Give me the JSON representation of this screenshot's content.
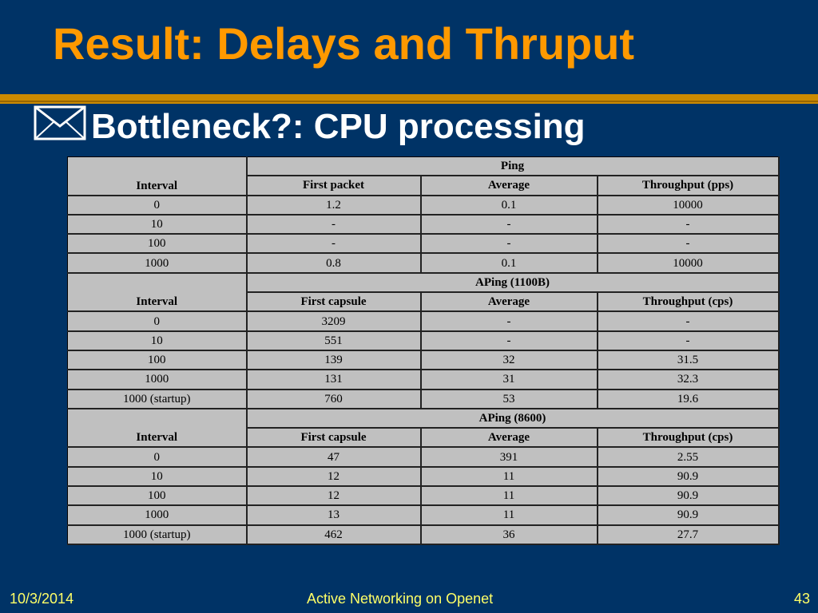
{
  "slide": {
    "title": "Result: Delays and Thruput",
    "bullet": "Bottleneck?: CPU processing",
    "bullet_icon": "envelope-icon",
    "colors": {
      "background": "#003366",
      "title": "#ff9900",
      "rule": "#cc8a00",
      "footer": "#ffff66"
    }
  },
  "tables": [
    {
      "group_label": "Ping",
      "headers": [
        "Interval",
        "First packet",
        "Average",
        "Throughput (pps)"
      ],
      "rows": [
        [
          "0",
          "1.2",
          "0.1",
          "10000"
        ],
        [
          "10",
          "-",
          "-",
          "-"
        ],
        [
          "100",
          "-",
          "-",
          "-"
        ],
        [
          "1000",
          "0.8",
          "0.1",
          "10000"
        ]
      ]
    },
    {
      "group_label": "APing (1100B)",
      "headers": [
        "Interval",
        "First capsule",
        "Average",
        "Throughput (cps)"
      ],
      "rows": [
        [
          "0",
          "3209",
          "-",
          "-"
        ],
        [
          "10",
          "551",
          "-",
          "-"
        ],
        [
          "100",
          "139",
          "32",
          "31.5"
        ],
        [
          "1000",
          "131",
          "31",
          "32.3"
        ],
        [
          "1000 (startup)",
          "760",
          "53",
          "19.6"
        ]
      ]
    },
    {
      "group_label": "APing (8600)",
      "headers": [
        "Interval",
        "First capsule",
        "Average",
        "Throughput (cps)"
      ],
      "rows": [
        [
          "0",
          "47",
          "391",
          "2.55"
        ],
        [
          "10",
          "12",
          "11",
          "90.9"
        ],
        [
          "100",
          "12",
          "11",
          "90.9"
        ],
        [
          "1000",
          "13",
          "11",
          "90.9"
        ],
        [
          "1000 (startup)",
          "462",
          "36",
          "27.7"
        ]
      ]
    }
  ],
  "footer": {
    "date": "10/3/2014",
    "center": "Active Networking on Openet",
    "page": "43"
  }
}
